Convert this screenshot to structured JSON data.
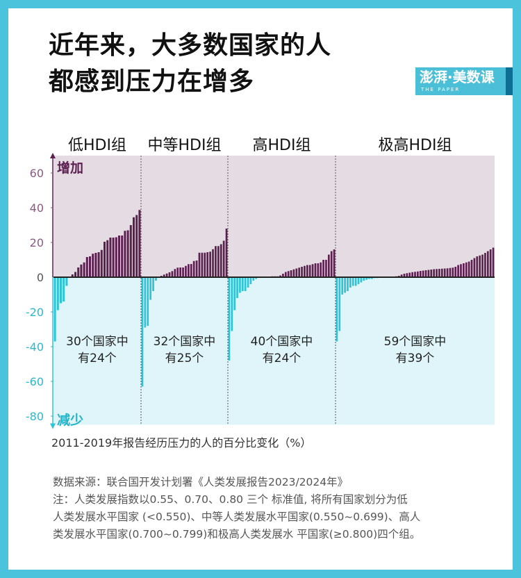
{
  "title_lines": [
    "近年来，大多数国家的人",
    "都感到压力在增多"
  ],
  "logo": {
    "text": "澎湃·美数课",
    "sub": "THE PAPER"
  },
  "colors": {
    "frame": "#4cc3dc",
    "increase_bar": "#5b1f50",
    "decrease_bar": "#2cc4d8",
    "increase_bg": "#e5dbe3",
    "decrease_bg": "#dff5f9"
  },
  "chart_data": {
    "type": "bar",
    "ylabel_top": "增加",
    "ylabel_bottom": "减少",
    "xlabel": "2011-2019年报告经历压力的人的百分比变化（%）",
    "ylim": [
      -85,
      70
    ],
    "yticks": [
      60,
      40,
      20,
      0,
      -20,
      -40,
      -60,
      -80
    ],
    "groups": [
      {
        "name": "低HDI组",
        "note_lines": [
          "30个国家中",
          "有24个"
        ],
        "values": [
          -37,
          -19,
          -15,
          -14,
          -5,
          0,
          1.6,
          3,
          5.6,
          7.3,
          8.5,
          11.6,
          12,
          13.5,
          14,
          14.4,
          15.7,
          20.4,
          21.3,
          22.8,
          22.8,
          23,
          24,
          24,
          26.7,
          27,
          30,
          34.5,
          35.8,
          38.7
        ]
      },
      {
        "name": "中等HDI组",
        "note_lines": [
          "32个国家中",
          "有25个"
        ],
        "values": [
          -63,
          -29,
          -28,
          -13,
          -8,
          -2,
          0,
          0.8,
          1.5,
          2.1,
          2.8,
          3.5,
          4.7,
          5.5,
          5.6,
          5.6,
          6.5,
          7.5,
          7.6,
          9.3,
          9.6,
          14.1,
          14.1,
          14.1,
          14.4,
          14.7,
          16.1,
          17.9,
          17.9,
          19,
          21,
          28
        ]
      },
      {
        "name": "高HDI组",
        "note_lines": [
          "40个国家中",
          "有24个"
        ],
        "values": [
          -48,
          -31,
          -19,
          -12,
          -9,
          -8,
          -8,
          -6,
          -4,
          -2,
          -1,
          0,
          0,
          0,
          0,
          0,
          0.5,
          0.5,
          0.5,
          1,
          2,
          3,
          3.5,
          4,
          4.5,
          5,
          5.5,
          6,
          6.5,
          7,
          7,
          7.5,
          8,
          8,
          8.5,
          10,
          10,
          13,
          15,
          16
        ]
      },
      {
        "name": "极高HDI组",
        "note_lines": [
          "59个国家中",
          "有39个"
        ],
        "values": [
          -37,
          -31,
          -10,
          -9,
          -8,
          -6,
          -5,
          -5,
          -4,
          -3,
          -2,
          -1.5,
          -1,
          -1,
          -0.5,
          -0.5,
          -0.3,
          0,
          0,
          0,
          0.3,
          0.4,
          0.5,
          0.8,
          1.5,
          2,
          2.3,
          2.6,
          2.9,
          3.1,
          3.3,
          3.6,
          3.8,
          4,
          4.2,
          4.4,
          4.6,
          4.7,
          4.8,
          4.9,
          5,
          5.1,
          5.3,
          5.5,
          6,
          7,
          7.5,
          8,
          8.5,
          9,
          10,
          11,
          12,
          12.5,
          13,
          14,
          15,
          16,
          17
        ]
      }
    ]
  },
  "notes": [
    "数据来源：联合国开发计划署《人类发展报告2023/2024年》",
    "注：人类发展指数以0.55、0.70、0.80 三个 标准值, 将所有国家划分为低",
    "人类发展水平国家 (<0.550)、中等人类发展水平国家(0.550~0.699)、高人",
    "类发展水平国家(0.700~0.799)和极高人类发展水 平国家(≥0.800)四个组。"
  ]
}
